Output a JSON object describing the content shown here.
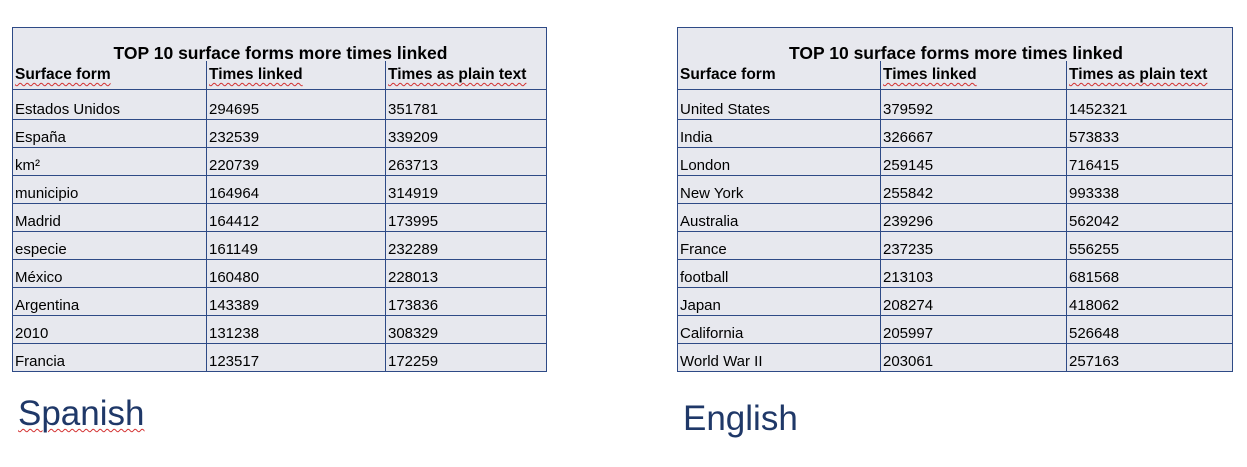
{
  "tables": {
    "spanish": {
      "title": "TOP 10 surface forms more times linked",
      "headers": [
        "Surface form",
        "Times linked",
        "Times as plain text"
      ],
      "rows": [
        [
          "Estados Unidos",
          "294695",
          "351781"
        ],
        [
          "España",
          "232539",
          "339209"
        ],
        [
          "km²",
          "220739",
          "263713"
        ],
        [
          "municipio",
          "164964",
          "314919"
        ],
        [
          "Madrid",
          "164412",
          "173995"
        ],
        [
          "especie",
          "161149",
          "232289"
        ],
        [
          "México",
          "160480",
          "228013"
        ],
        [
          "Argentina",
          "143389",
          "173836"
        ],
        [
          "2010",
          "131238",
          "308329"
        ],
        [
          "Francia",
          "123517",
          "172259"
        ]
      ]
    },
    "english": {
      "title": "TOP 10 surface forms more times linked",
      "headers": [
        "Surface form",
        "Times linked",
        "Times as plain text"
      ],
      "rows": [
        [
          "United States",
          "379592",
          "1452321"
        ],
        [
          "India",
          "326667",
          "573833"
        ],
        [
          "London",
          "259145",
          "716415"
        ],
        [
          "New York",
          "255842",
          "993338"
        ],
        [
          "Australia",
          "239296",
          "562042"
        ],
        [
          "France",
          "237235",
          "556255"
        ],
        [
          "football",
          "213103",
          "681568"
        ],
        [
          "Japan",
          "208274",
          "418062"
        ],
        [
          "California",
          "205997",
          "526648"
        ],
        [
          "World War II",
          "203061",
          "257163"
        ]
      ]
    }
  },
  "labels": {
    "spanish": "Spanish",
    "english": "English"
  },
  "colors": {
    "border": "#2e4a86",
    "cell_background": "#e7e8ee",
    "label_text": "#1f3868",
    "spellcheck_underline": "#d33030"
  }
}
